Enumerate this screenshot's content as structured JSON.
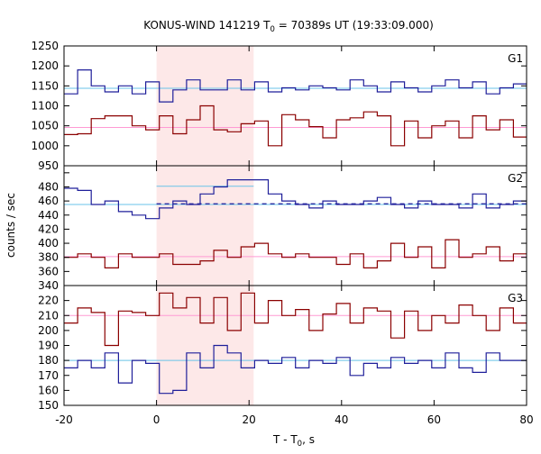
{
  "chart_data": {
    "type": "line",
    "title": "KONUS-WIND 141219 T",
    "title_sub": "0",
    "title_rest": " = 70389s UT (19:33:09.000)",
    "xlabel": "T - T",
    "xlabel_sub": "0",
    "xlabel_rest": ", s",
    "ylabel": "counts / sec",
    "xlim": [
      -20,
      80
    ],
    "x_ticks": [
      -20,
      0,
      20,
      40,
      60,
      80
    ],
    "highlight_interval": [
      0,
      21
    ],
    "colors": {
      "highlight": "#fde8e8",
      "red_series": "#8b0000",
      "blue_series": "#1f1f9a",
      "red_level": "#ff9ad4",
      "blue_level": "#69c3e8",
      "blue_dashed": "#1f1f9a"
    },
    "panels": [
      {
        "label": "G1",
        "ylim": [
          950,
          1250
        ],
        "y_ticks": [
          950,
          1000,
          1050,
          1100,
          1150,
          1200,
          1250
        ],
        "bin_edges_start": -20,
        "bin_width": 2.944,
        "series": [
          {
            "color": "red",
            "values": [
              1028,
              1030,
              1068,
              1075,
              1075,
              1050,
              1040,
              1075,
              1030,
              1065,
              1100,
              1040,
              1035,
              1055,
              1062,
              1000,
              1078,
              1065,
              1048,
              1020,
              1065,
              1070,
              1085,
              1075,
              1000,
              1062,
              1020,
              1050,
              1062,
              1020,
              1075,
              1040,
              1065,
              1022,
              1060,
              1030,
              1025,
              1045,
              1010,
              1042,
              1055,
              1060
            ]
          },
          {
            "color": "blue",
            "values": [
              1130,
              1190,
              1150,
              1135,
              1150,
              1130,
              1160,
              1110,
              1140,
              1165,
              1140,
              1140,
              1165,
              1140,
              1160,
              1135,
              1145,
              1140,
              1150,
              1145,
              1140,
              1165,
              1150,
              1135,
              1160,
              1145,
              1135,
              1150,
              1165,
              1145,
              1160,
              1130,
              1145,
              1155,
              1150,
              1140,
              1160,
              1140,
              1170,
              1150,
              1150,
              1150
            ]
          }
        ],
        "levels": [
          {
            "color": "red_level",
            "value": 1046
          },
          {
            "color": "blue_level",
            "value": 1144
          }
        ]
      },
      {
        "label": "G2",
        "ylim": [
          340,
          510
        ],
        "y_ticks": [
          340,
          360,
          380,
          400,
          420,
          440,
          460,
          480,
          500
        ],
        "bin_edges_start": -20,
        "bin_width": 2.944,
        "series": [
          {
            "color": "red",
            "values": [
              380,
              385,
              380,
              365,
              385,
              380,
              380,
              385,
              370,
              370,
              375,
              390,
              380,
              395,
              400,
              385,
              380,
              385,
              380,
              380,
              370,
              385,
              365,
              375,
              400,
              380,
              395,
              365,
              405,
              380,
              385,
              395,
              375,
              385,
              385,
              385,
              370,
              380,
              385,
              380,
              365,
              375,
              385
            ]
          },
          {
            "color": "blue",
            "values": [
              478,
              475,
              455,
              460,
              445,
              440,
              435,
              450,
              460,
              455,
              470,
              480,
              490,
              490,
              490,
              470,
              460,
              455,
              450,
              460,
              455,
              455,
              460,
              465,
              455,
              450,
              460,
              455,
              455,
              450,
              470,
              450,
              455,
              460,
              455,
              445,
              460,
              455,
              450,
              460,
              455,
              455,
              460
            ]
          }
        ],
        "levels": [
          {
            "color": "red_level",
            "value": 381
          },
          {
            "color": "blue_level",
            "value": 455
          }
        ],
        "dashed": {
          "color": "blue_dashed",
          "value": 456,
          "from": 0,
          "to": 80
        },
        "blue_highlight_level": {
          "value": 481,
          "from": 0,
          "to": 21
        }
      },
      {
        "label": "G3",
        "ylim": [
          150,
          230
        ],
        "y_ticks": [
          150,
          160,
          170,
          180,
          190,
          200,
          210,
          220,
          230
        ],
        "bin_edges_start": -20,
        "bin_width": 2.944,
        "series": [
          {
            "color": "red",
            "values": [
              205,
              215,
              212,
              190,
              213,
              212,
              210,
              225,
              215,
              222,
              205,
              222,
              200,
              225,
              205,
              220,
              210,
              214,
              200,
              211,
              218,
              205,
              215,
              213,
              195,
              213,
              200,
              210,
              205,
              217,
              210,
              200,
              215,
              205,
              208,
              218,
              210,
              212,
              208,
              203,
              210,
              212
            ]
          },
          {
            "color": "blue",
            "values": [
              175,
              180,
              175,
              185,
              165,
              180,
              178,
              158,
              160,
              185,
              175,
              190,
              185,
              175,
              180,
              178,
              182,
              175,
              180,
              178,
              182,
              170,
              178,
              175,
              182,
              178,
              180,
              175,
              185,
              175,
              172,
              185,
              180,
              180,
              185,
              175,
              180,
              180,
              185,
              178,
              175,
              182,
              195
            ]
          }
        ],
        "levels": [
          {
            "color": "red_level",
            "value": 210
          },
          {
            "color": "blue_level",
            "value": 180
          }
        ]
      }
    ]
  }
}
